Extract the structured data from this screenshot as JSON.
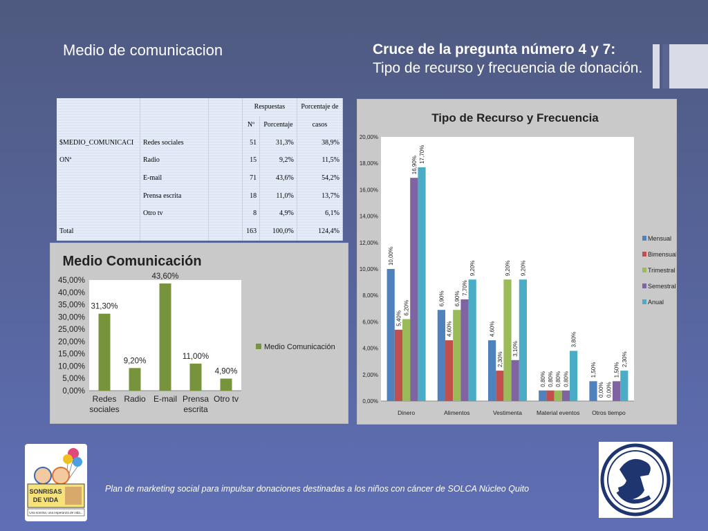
{
  "slide": {
    "left_title": "Medio de comunicacion",
    "right_title_bold": "Cruce de la pregunta número 4 y 7:",
    "right_title_rest": "Tipo de recurso y frecuencia de donación.",
    "footer": "Plan de marketing social para impulsar donaciones destinadas a los niños con cáncer de SOLCA Núcleo Quito"
  },
  "logo_left": {
    "line1": "SONRISAS",
    "line2": "DE VIDA",
    "tagline": "Una sonrisa, una esperanza de vida..."
  },
  "table": {
    "header1": [
      "Respuestas",
      "Porcentaje de"
    ],
    "header2": [
      "Nº",
      "Porcentaje",
      "casos"
    ],
    "var_name_1": "$MEDIO_COMUNICACI",
    "var_name_2": "ONª",
    "rows": [
      {
        "label": "Redes sociales",
        "n": "51",
        "pct": "31,3%",
        "casos": "38,9%"
      },
      {
        "label": "Radio",
        "n": "15",
        "pct": "9,2%",
        "casos": "11,5%"
      },
      {
        "label": "E-mail",
        "n": "71",
        "pct": "43,6%",
        "casos": "54,2%"
      },
      {
        "label": "Prensa escrita",
        "n": "18",
        "pct": "11,0%",
        "casos": "13,7%"
      },
      {
        "label": "Otro tv",
        "n": "8",
        "pct": "4,9%",
        "casos": "6,1%"
      }
    ],
    "total": {
      "label": "Total",
      "n": "163",
      "pct": "100,0%",
      "casos": "124,4%"
    }
  },
  "chart_data": [
    {
      "type": "bar",
      "title": "Medio Comunicación",
      "categories": [
        "Redes sociales",
        "Radio",
        "E-mail",
        "Prensa escrita",
        "Otro tv"
      ],
      "category_lines": [
        [
          "Redes",
          "sociales"
        ],
        [
          "Radio"
        ],
        [
          "E-mail"
        ],
        [
          "Prensa",
          "escrita"
        ],
        [
          "Otro tv"
        ]
      ],
      "series": [
        {
          "name": "Medio Comunicación",
          "values": [
            31.3,
            9.2,
            43.6,
            11.0,
            4.9
          ]
        }
      ],
      "data_labels": [
        "31,30%",
        "9,20%",
        "43,60%",
        "11,00%",
        "4,90%"
      ],
      "ylim": [
        0,
        45
      ],
      "yticks": [
        0,
        5,
        10,
        15,
        20,
        25,
        30,
        35,
        40,
        45
      ],
      "ytick_labels": [
        "0,00%",
        "5,00%",
        "10,00%",
        "15,00%",
        "20,00%",
        "25,00%",
        "30,00%",
        "35,00%",
        "40,00%",
        "45,00%"
      ],
      "legend": "right",
      "color": "#77933c"
    },
    {
      "type": "bar",
      "title": "Tipo de Recurso  y Frecuencia",
      "categories": [
        "Dinero",
        "Alimentos",
        "Vestimenta",
        "Material eventos",
        "Otros tiempo"
      ],
      "series": [
        {
          "name": "Mensual",
          "color": "#4f81bd",
          "values": [
            10.0,
            6.9,
            4.6,
            0.8,
            1.5
          ],
          "labels": [
            "10,00%",
            "6,90%",
            "4,60%",
            "0,80%",
            "1,50%"
          ]
        },
        {
          "name": "Bimensual",
          "color": "#c0504d",
          "values": [
            5.4,
            4.6,
            2.3,
            0.8,
            0.0
          ],
          "labels": [
            "5,40%",
            "4,60%",
            "2,30%",
            "0,80%",
            "0,00%"
          ]
        },
        {
          "name": "Trimestral",
          "color": "#9bbb59",
          "values": [
            6.2,
            6.9,
            9.2,
            0.8,
            0.0
          ],
          "labels": [
            "6,20%",
            "6,90%",
            "9,20%",
            "0,80%",
            "0,00%"
          ]
        },
        {
          "name": "Semestral",
          "color": "#8064a2",
          "values": [
            16.9,
            7.7,
            3.1,
            0.8,
            1.5
          ],
          "labels": [
            "16,90%",
            "7,70%",
            "3,10%",
            "0,80%",
            "1,50%"
          ]
        },
        {
          "name": "Anual",
          "color": "#4bacc6",
          "values": [
            17.7,
            9.2,
            9.2,
            3.8,
            2.3
          ],
          "labels": [
            "17,70%",
            "9,20%",
            "9,20%",
            "3,80%",
            "2,30%"
          ]
        }
      ],
      "ylim": [
        0,
        20
      ],
      "yticks": [
        0,
        2,
        4,
        6,
        8,
        10,
        12,
        14,
        16,
        18,
        20
      ],
      "ytick_labels": [
        "0,00%",
        "2,00%",
        "4,00%",
        "6,00%",
        "8,00%",
        "10,00%",
        "12,00%",
        "14,00%",
        "16,00%",
        "18,00%",
        "20,00%"
      ],
      "legend": "right",
      "grid": false
    }
  ]
}
